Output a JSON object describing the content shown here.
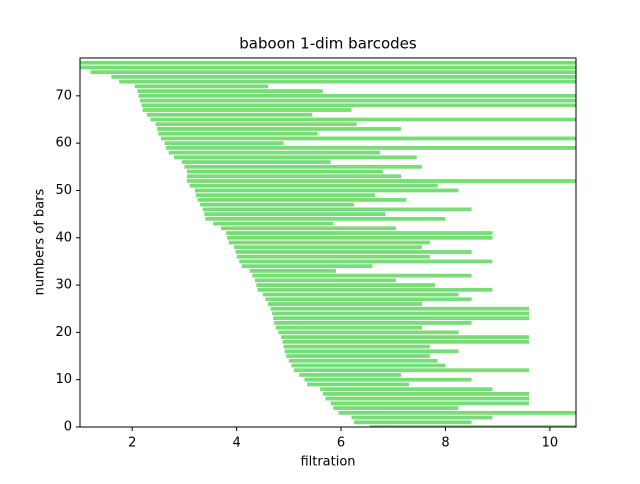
{
  "chart_data": {
    "type": "barcode",
    "title": "baboon 1-dim barcodes",
    "x_label": "filtration",
    "y_label": "numbers of bars",
    "color": "#77dd77",
    "start": [
      6.55,
      6.25,
      6.2,
      5.95,
      5.85,
      5.8,
      5.7,
      5.65,
      5.6,
      5.35,
      5.3,
      5.2,
      5.1,
      5.05,
      5.0,
      4.95,
      4.92,
      4.9,
      4.88,
      4.85,
      4.8,
      4.75,
      4.72,
      4.7,
      4.68,
      4.65,
      4.6,
      4.55,
      4.5,
      4.4,
      4.38,
      4.35,
      4.3,
      4.25,
      4.1,
      4.05,
      4.0,
      3.98,
      3.95,
      3.85,
      3.82,
      3.8,
      3.7,
      3.55,
      3.4,
      3.38,
      3.35,
      3.3,
      3.25,
      3.22,
      3.2,
      3.1,
      3.05,
      3.05,
      3.05,
      3.0,
      2.95,
      2.8,
      2.7,
      2.65,
      2.62,
      2.55,
      2.5,
      2.48,
      2.45,
      2.35,
      2.28,
      2.2,
      2.18,
      2.15,
      2.12,
      2.1,
      2.05,
      1.75,
      1.6,
      1.2,
      1.0,
      1.0
    ],
    "end": [
      10.5,
      8.5,
      8.9,
      10.5,
      8.25,
      9.6,
      9.6,
      9.6,
      8.9,
      7.3,
      8.5,
      7.15,
      9.6,
      8.0,
      7.85,
      7.7,
      8.25,
      7.7,
      9.6,
      9.6,
      8.25,
      7.55,
      8.5,
      9.6,
      9.6,
      9.6,
      7.55,
      8.5,
      8.25,
      8.9,
      7.8,
      7.05,
      8.5,
      5.9,
      6.6,
      8.9,
      7.7,
      8.5,
      7.55,
      7.7,
      8.9,
      8.9,
      7.05,
      5.85,
      8.0,
      6.85,
      8.5,
      6.25,
      7.25,
      6.65,
      8.25,
      7.85,
      10.5,
      7.15,
      6.8,
      7.55,
      5.8,
      7.45,
      6.75,
      10.5,
      4.9,
      10.5,
      5.55,
      7.15,
      6.3,
      10.5,
      5.45,
      6.2,
      10.5,
      10.5,
      10.5,
      5.65,
      4.6,
      10.5,
      10.5,
      10.5,
      10.5,
      10.5
    ],
    "xlim": [
      1.0,
      10.5
    ],
    "xticks": [
      2,
      4,
      6,
      8,
      10
    ],
    "ylim": [
      0,
      78
    ],
    "yticks": [
      0,
      10,
      20,
      30,
      40,
      50,
      60,
      70
    ]
  }
}
